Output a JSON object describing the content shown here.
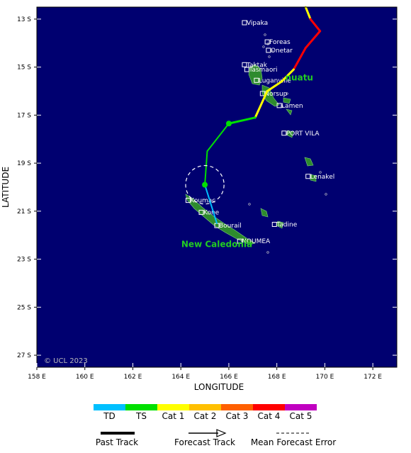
{
  "map": {
    "lon_min": 158.0,
    "lon_max": 173.0,
    "lat_top": -12.5,
    "lat_bottom": -27.5,
    "ocean_color": "#000070",
    "land_color": "#2e8b2e",
    "x_ticks": [
      {
        "lon": 158,
        "label": "158 E"
      },
      {
        "lon": 160,
        "label": "160 E"
      },
      {
        "lon": 162,
        "label": "162 E"
      },
      {
        "lon": 164,
        "label": "164 E"
      },
      {
        "lon": 166,
        "label": "166 E"
      },
      {
        "lon": 168,
        "label": "168 E"
      },
      {
        "lon": 170,
        "label": "170 E"
      },
      {
        "lon": 172,
        "label": "172 E"
      }
    ],
    "y_ticks": [
      {
        "lat": -13,
        "label": "13 S"
      },
      {
        "lat": -15,
        "label": "15 S"
      },
      {
        "lat": -17,
        "label": "17 S"
      },
      {
        "lat": -19,
        "label": "19 S"
      },
      {
        "lat": -21,
        "label": "21 S"
      },
      {
        "lat": -23,
        "label": "23 S"
      },
      {
        "lat": -25,
        "label": "25 S"
      },
      {
        "lat": -27,
        "label": "27 S"
      }
    ],
    "xlabel": "LONGITUDE",
    "ylabel": "LATITUDE",
    "copyright": "© UCL 2023",
    "region_labels": [
      {
        "text": "Vanuatu",
        "lon": 168.35,
        "lat": -15.55,
        "visible": "nuatu"
      },
      {
        "text": "New Caledonia",
        "lon": 165.5,
        "lat": -22.5
      }
    ],
    "towns": [
      {
        "name": "Vipaka",
        "lon": 166.65,
        "lat": -13.15
      },
      {
        "name": "Foreas",
        "lon": 167.6,
        "lat": -13.95
      },
      {
        "name": "Onetar",
        "lon": 167.65,
        "lat": -14.3
      },
      {
        "name": "Taktak",
        "lon": 166.65,
        "lat": -14.9
      },
      {
        "name": "Tasmaori",
        "lon": 166.75,
        "lat": -15.1
      },
      {
        "name": "Luganville",
        "lon": 167.15,
        "lat": -15.55
      },
      {
        "name": "Norsup",
        "lon": 167.4,
        "lat": -16.1
      },
      {
        "name": "Lamen",
        "lon": 168.1,
        "lat": -16.6
      },
      {
        "name": "PORT VILA",
        "lon": 168.3,
        "lat": -17.75
      },
      {
        "name": "Lenakel",
        "lon": 169.3,
        "lat": -19.55
      },
      {
        "name": "Koumac",
        "lon": 164.3,
        "lat": -20.55
      },
      {
        "name": "Kone",
        "lon": 164.85,
        "lat": -21.05
      },
      {
        "name": "Bourail",
        "lon": 165.5,
        "lat": -21.6
      },
      {
        "name": "Tadine",
        "lon": 167.9,
        "lat": -21.55
      },
      {
        "name": "NOUMEA",
        "lon": 166.45,
        "lat": -22.25
      }
    ]
  },
  "track": {
    "past": [
      {
        "lon": 169.2,
        "lat": -12.5,
        "cat": "Cat 1"
      },
      {
        "lon": 169.4,
        "lat": -13.0,
        "cat": "Cat 1"
      },
      {
        "lon": 169.8,
        "lat": -13.5,
        "cat": "Cat 4"
      },
      {
        "lon": 169.2,
        "lat": -14.2,
        "cat": "Cat 4"
      },
      {
        "lon": 168.7,
        "lat": -15.1,
        "cat": "Cat 4"
      },
      {
        "lon": 168.2,
        "lat": -15.6,
        "cat": "Cat 1"
      },
      {
        "lon": 167.6,
        "lat": -16.0,
        "cat": "Cat 1"
      },
      {
        "lon": 167.1,
        "lat": -17.1,
        "cat": "Cat 1"
      },
      {
        "lon": 166.0,
        "lat": -17.35,
        "cat": "TS"
      }
    ],
    "forecast": [
      {
        "lon": 166.0,
        "lat": -17.35,
        "cat": "TS"
      },
      {
        "lon": 165.1,
        "lat": -18.5,
        "cat": "TS"
      },
      {
        "lon": 165.0,
        "lat": -19.9,
        "cat": "TS"
      },
      {
        "lon": 165.5,
        "lat": -21.5,
        "cat": "TD"
      }
    ],
    "points": [
      {
        "lon": 166.0,
        "lat": -17.35
      },
      {
        "lon": 165.0,
        "lat": -19.9
      }
    ],
    "error_circle": {
      "lon": 165.0,
      "lat": -19.9,
      "radius_deg": 0.8
    }
  },
  "legend": {
    "categories": [
      {
        "label": "TD",
        "color": "#00c0ff"
      },
      {
        "label": "TS",
        "color": "#00e000"
      },
      {
        "label": "Cat 1",
        "color": "#ffff00"
      },
      {
        "label": "Cat 2",
        "color": "#ffc000"
      },
      {
        "label": "Cat 3",
        "color": "#ff6000"
      },
      {
        "label": "Cat 4",
        "color": "#ff0000"
      },
      {
        "label": "Cat 5",
        "color": "#c000c0"
      }
    ],
    "past_track": "Past Track",
    "forecast_track": "Forecast Track",
    "error": "Mean Forecast Error"
  }
}
